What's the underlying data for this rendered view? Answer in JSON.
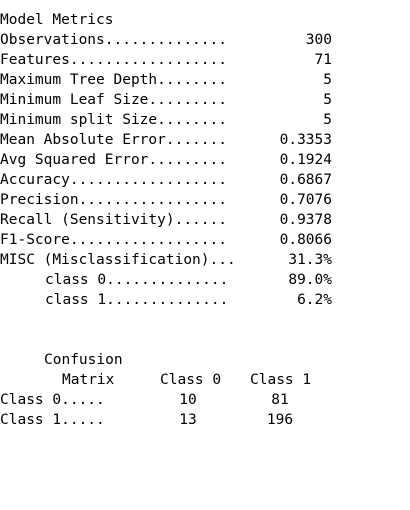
{
  "title": "Model Metrics",
  "metrics": [
    {
      "label": "Observations..............",
      "value": "300"
    },
    {
      "label": "Features..................",
      "value": "71"
    },
    {
      "label": "Maximum Tree Depth........",
      "value": "5"
    },
    {
      "label": "Minimum Leaf Size.........",
      "value": "5"
    },
    {
      "label": "Minimum split Size........",
      "value": "5"
    },
    {
      "label": "Mean Absolute Error.......",
      "value": "0.3353"
    },
    {
      "label": "Avg Squared Error.........",
      "value": "0.1924"
    },
    {
      "label": "Accuracy..................",
      "value": "0.6867"
    },
    {
      "label": "Precision.................",
      "value": "0.7076"
    },
    {
      "label": "Recall (Sensitivity)......",
      "value": "0.9378"
    },
    {
      "label": "F1-Score..................",
      "value": "0.8066"
    },
    {
      "label": "MISC (Misclassification)...",
      "value": "31.3%"
    },
    {
      "label": "class 0..............",
      "value": "89.0%"
    },
    {
      "label": "class 1..............",
      "value": "6.2%"
    }
  ],
  "confusion": {
    "title": "Confusion",
    "matrix_label": "Matrix",
    "col_headers": [
      "Class 0",
      "Class 1"
    ],
    "rows": [
      {
        "label": "Class 0.....",
        "values": [
          "10",
          "81"
        ]
      },
      {
        "label": "Class 1.....",
        "values": [
          "13",
          "196"
        ]
      }
    ]
  }
}
